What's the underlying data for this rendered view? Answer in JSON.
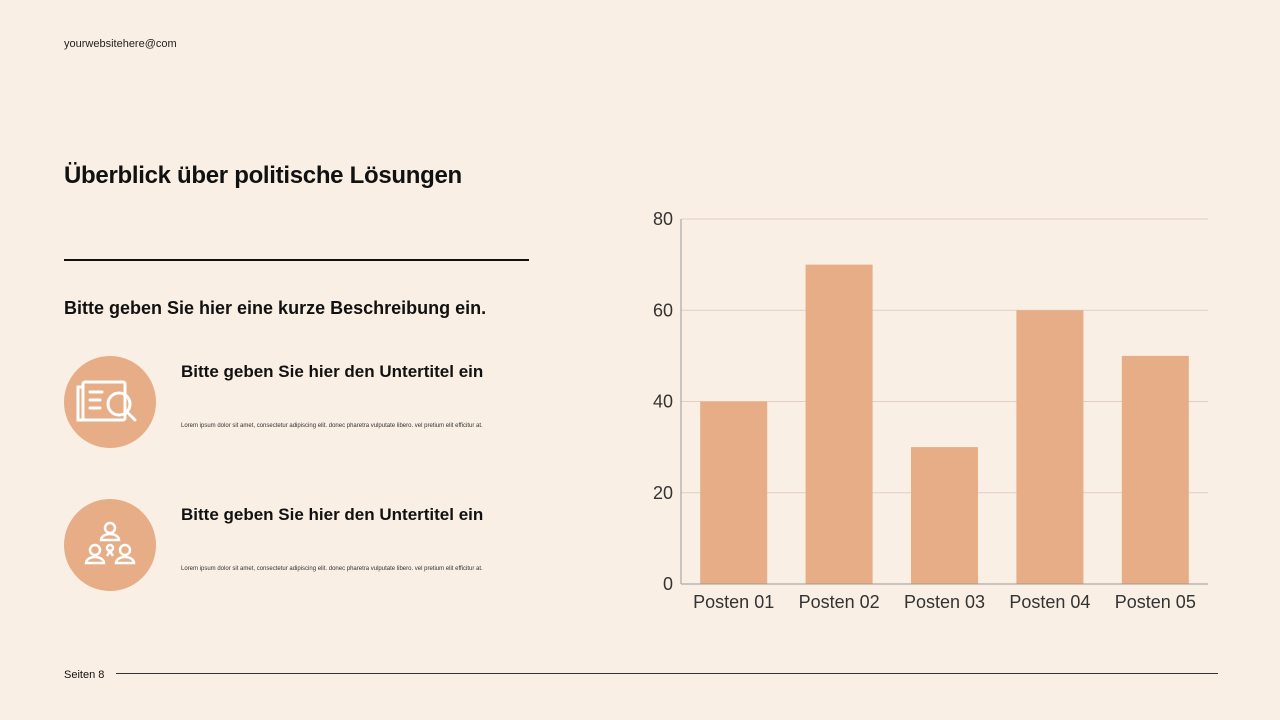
{
  "header": {
    "email": "yourwebsitehere@com"
  },
  "title": "Überblick über politische Lösungen",
  "description": "Bitte geben Sie hier eine kurze Beschreibung ein.",
  "items": [
    {
      "icon": "newspaper-search-icon",
      "subtitle": "Bitte geben Sie hier den Untertitel ein",
      "text": "Lorem ipsum dolor sit amet, consectetur adipiscing elit. donec pharetra vulputate libero. vel pretium elit efficitur at."
    },
    {
      "icon": "team-network-icon",
      "subtitle": "Bitte geben Sie hier den Untertitel ein",
      "text": "Lorem ipsum dolor sit amet, consectetur adipiscing elit. donec pharetra vulputate libero. vel pretium elit efficitur at."
    }
  ],
  "footer": {
    "page": "Seiten 8"
  },
  "colors": {
    "accent": "#e6ad86",
    "background": "#faefe4"
  },
  "chart_data": {
    "type": "bar",
    "categories": [
      "Posten 01",
      "Posten 02",
      "Posten 03",
      "Posten 04",
      "Posten 05"
    ],
    "values": [
      40,
      70,
      30,
      60,
      50
    ],
    "ylim": [
      0,
      80
    ],
    "yticks": [
      0,
      20,
      40,
      60,
      80
    ],
    "grid": true,
    "color": "#e6ad86"
  }
}
